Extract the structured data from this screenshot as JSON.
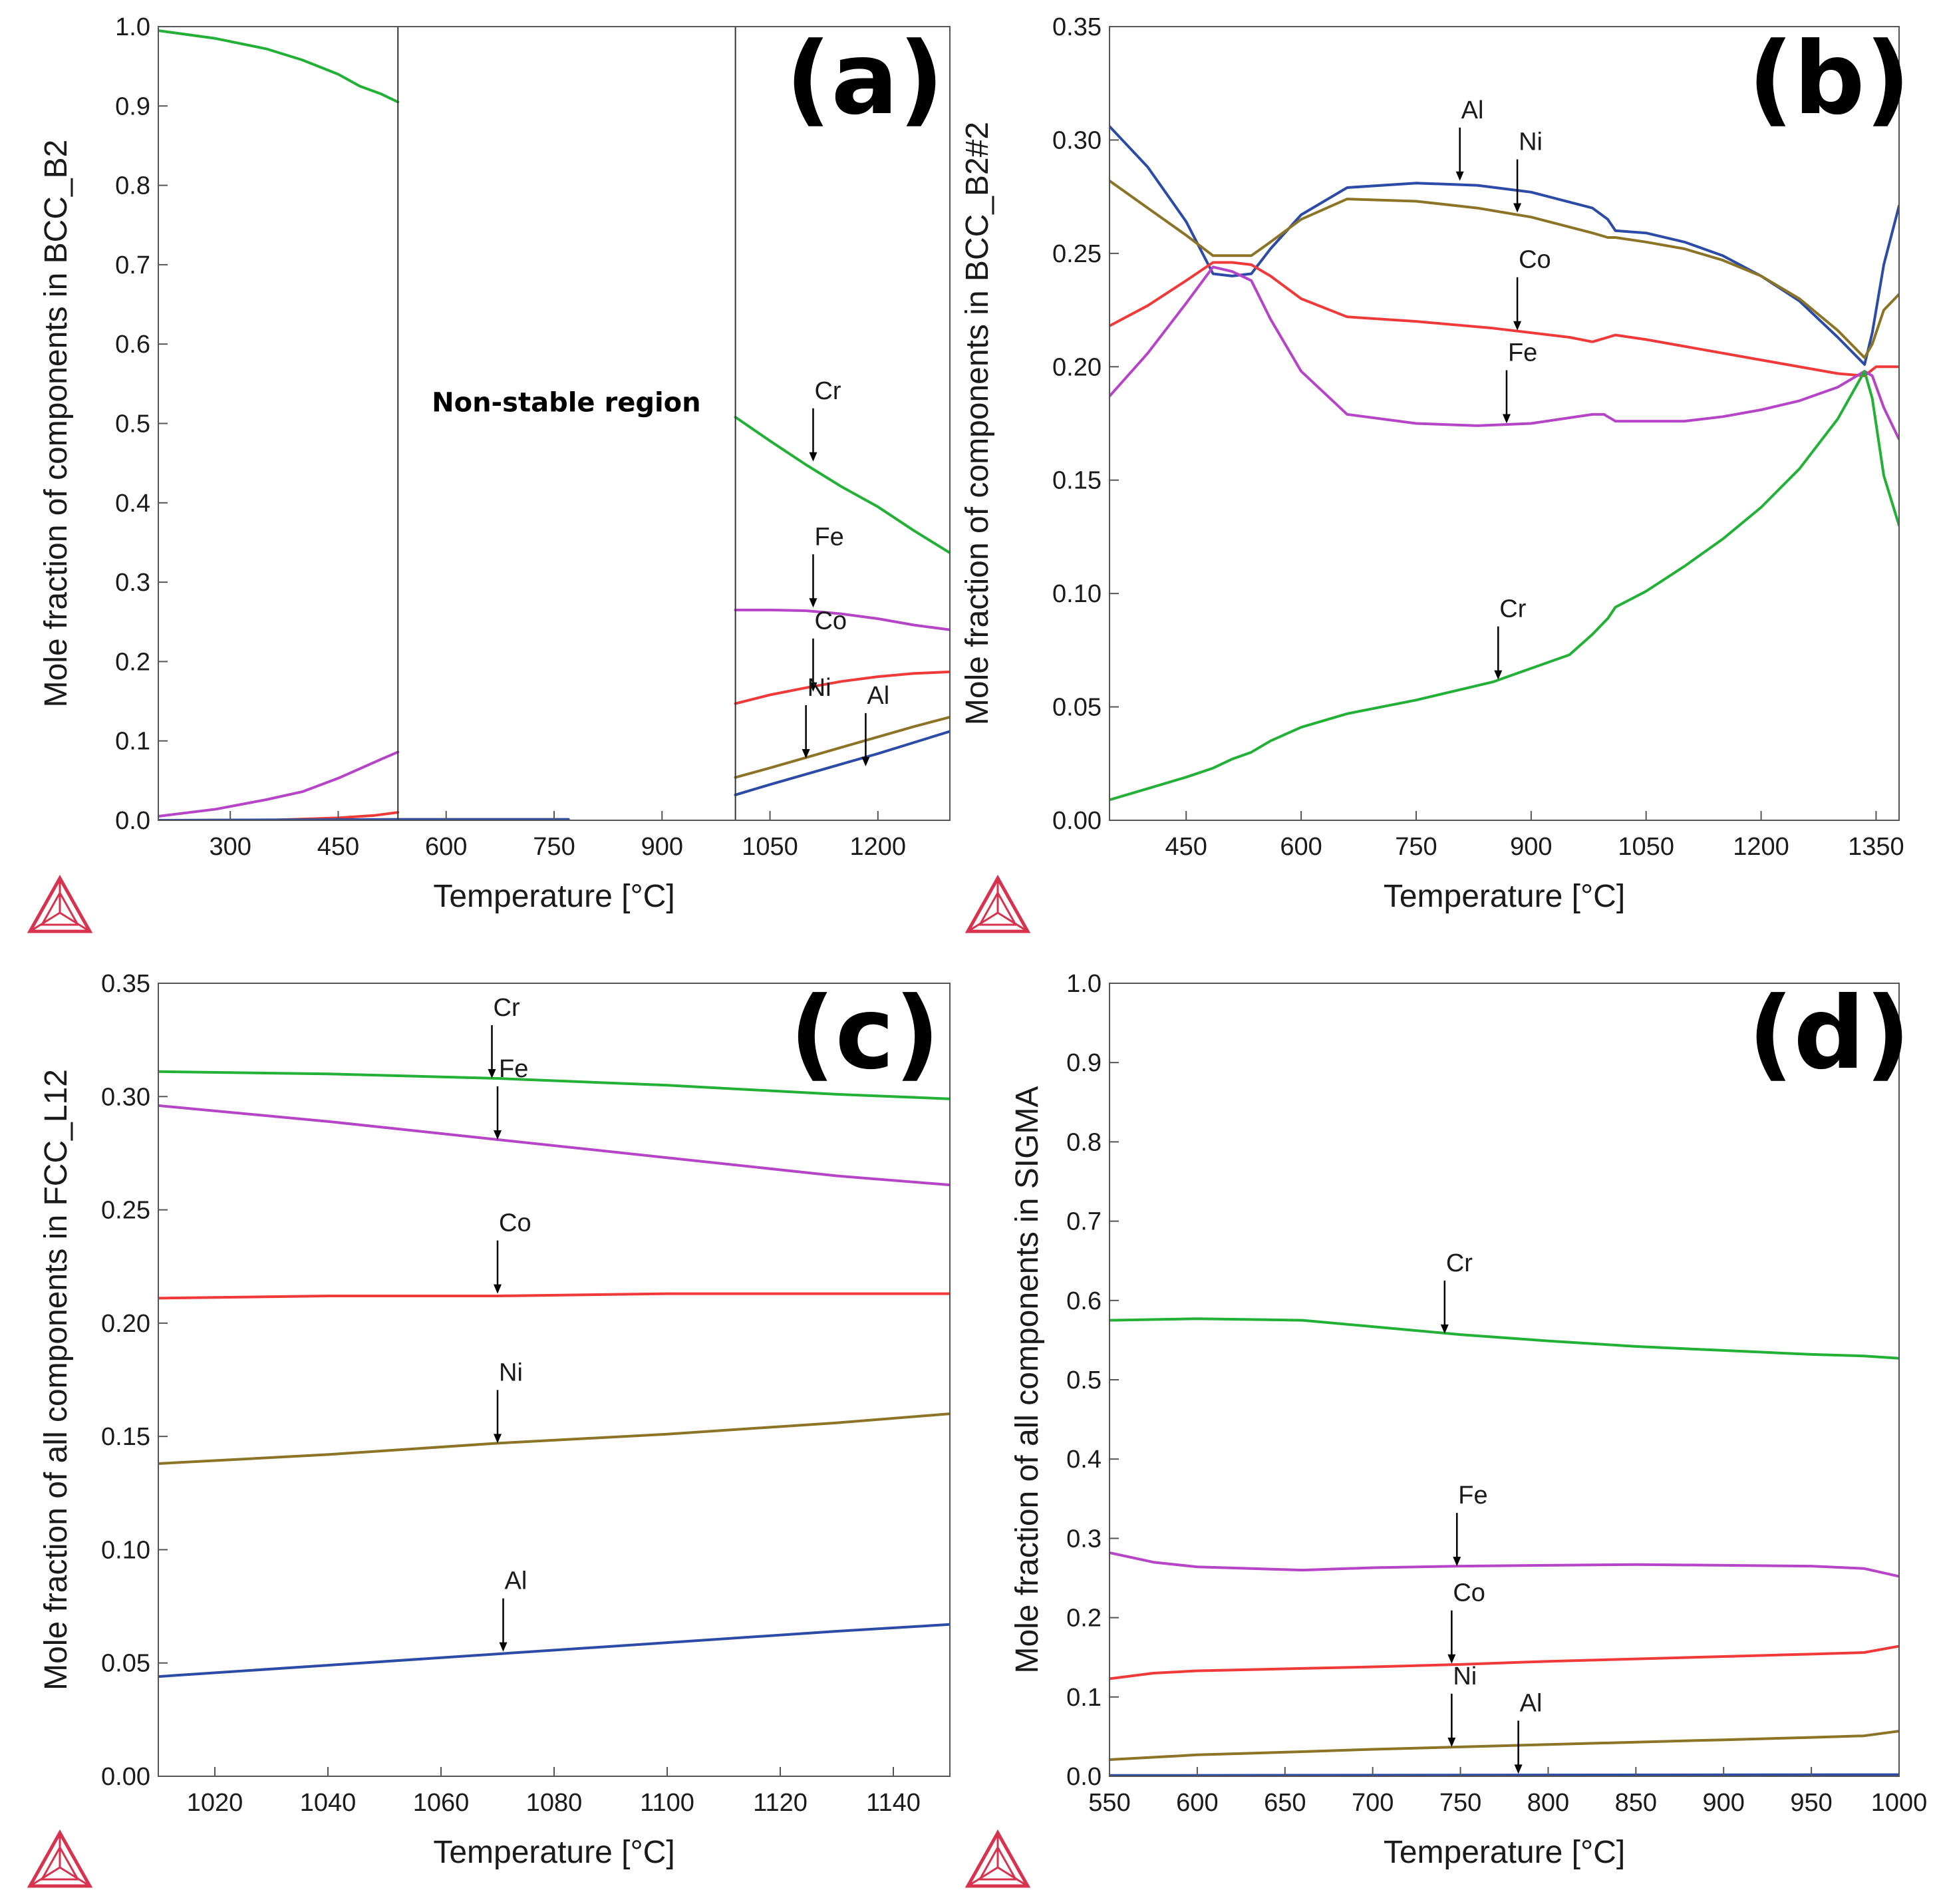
{
  "chart_data": [
    {
      "type": "line",
      "panel": "(a)",
      "xlabel": "Temperature [°C]",
      "ylabel": "Mole fraction of components in BCC_B2",
      "xlim": [
        200,
        1300
      ],
      "ylim": [
        0,
        1.0
      ],
      "xticks": [
        300,
        450,
        600,
        750,
        900,
        1050,
        1200
      ],
      "yticks": [
        0.0,
        0.1,
        0.2,
        0.3,
        0.4,
        0.5,
        0.6,
        0.7,
        0.8,
        0.9,
        1.0
      ],
      "ytick_labels": [
        "0.0",
        "0.1",
        "0.2",
        "0.3",
        "0.4",
        "0.5",
        "0.6",
        "0.7",
        "0.8",
        "0.9",
        "1.0"
      ],
      "vlines": [
        533,
        1002
      ],
      "region_label": {
        "text": "Non-stable region",
        "x": 767,
        "y": 0.515
      },
      "series": [
        {
          "name": "Cr",
          "color": "#22b036",
          "x": [
            200,
            280,
            350,
            400,
            450,
            480,
            510,
            533
          ],
          "y": [
            0.995,
            0.985,
            0.972,
            0.958,
            0.94,
            0.925,
            0.915,
            0.905
          ]
        },
        {
          "name": "Fe",
          "color": "#b545c6",
          "x": [
            200,
            280,
            350,
            400,
            450,
            480,
            510,
            533
          ],
          "y": [
            0.005,
            0.014,
            0.026,
            0.036,
            0.053,
            0.065,
            0.077,
            0.086
          ]
        },
        {
          "name": "Co",
          "color": "#f03a3a",
          "x": [
            200,
            350,
            450,
            500,
            533
          ],
          "y": [
            0.0,
            0.0,
            0.003,
            0.006,
            0.01
          ]
        },
        {
          "name": "Ni",
          "color": "#8b7426",
          "x": [
            200,
            533,
            770
          ],
          "y": [
            0.0,
            0.001,
            0.001
          ]
        },
        {
          "name": "Al",
          "color": "#2b4ba6",
          "x": [
            200,
            533,
            770
          ],
          "y": [
            0.0,
            0.001,
            0.001
          ]
        },
        {
          "name": "Cr",
          "color": "#22b036",
          "x": [
            1002,
            1050,
            1100,
            1150,
            1200,
            1250,
            1300
          ],
          "y": [
            0.508,
            0.478,
            0.448,
            0.42,
            0.395,
            0.365,
            0.337
          ]
        },
        {
          "name": "Fe",
          "color": "#b545c6",
          "x": [
            1002,
            1050,
            1100,
            1150,
            1200,
            1250,
            1300
          ],
          "y": [
            0.265,
            0.265,
            0.264,
            0.26,
            0.254,
            0.246,
            0.24
          ]
        },
        {
          "name": "Co",
          "color": "#f03a3a",
          "x": [
            1002,
            1050,
            1100,
            1150,
            1200,
            1250,
            1300
          ],
          "y": [
            0.147,
            0.158,
            0.167,
            0.175,
            0.181,
            0.185,
            0.187
          ]
        },
        {
          "name": "Ni",
          "color": "#8b7426",
          "x": [
            1002,
            1050,
            1100,
            1150,
            1200,
            1250,
            1300
          ],
          "y": [
            0.054,
            0.066,
            0.079,
            0.092,
            0.105,
            0.118,
            0.13
          ]
        },
        {
          "name": "Al",
          "color": "#2b4ba6",
          "x": [
            1002,
            1050,
            1100,
            1150,
            1200,
            1250,
            1300
          ],
          "y": [
            0.032,
            0.045,
            0.058,
            0.071,
            0.084,
            0.098,
            0.112
          ]
        }
      ],
      "annotations": [
        {
          "text": "Cr",
          "x": 1110,
          "y": 0.452
        },
        {
          "text": "Fe",
          "x": 1110,
          "y": 0.268
        },
        {
          "text": "Co",
          "x": 1110,
          "y": 0.162
        },
        {
          "text": "Ni",
          "x": 1100,
          "y": 0.078
        },
        {
          "text": "Al",
          "x": 1183,
          "y": 0.068
        }
      ]
    },
    {
      "type": "line",
      "panel": "(b)",
      "xlabel": "Temperature [°C]",
      "ylabel": "Mole fraction of components in BCC_B2#2",
      "xlim": [
        350,
        1380
      ],
      "ylim": [
        0,
        0.35
      ],
      "xticks": [
        450,
        600,
        750,
        900,
        1050,
        1200,
        1350
      ],
      "yticks": [
        0.0,
        0.05,
        0.1,
        0.15,
        0.2,
        0.25,
        0.3,
        0.35
      ],
      "ytick_labels": [
        "0.00",
        "0.05",
        "0.10",
        "0.15",
        "0.20",
        "0.25",
        "0.30",
        "0.35"
      ],
      "series": [
        {
          "name": "Al",
          "color": "#2b4ba6",
          "x": [
            350,
            400,
            450,
            485,
            510,
            535,
            560,
            600,
            660,
            750,
            830,
            900,
            980,
            1000,
            1010,
            1050,
            1100,
            1150,
            1200,
            1250,
            1300,
            1335,
            1345,
            1360,
            1380
          ],
          "y": [
            0.306,
            0.288,
            0.264,
            0.241,
            0.24,
            0.241,
            0.252,
            0.267,
            0.279,
            0.281,
            0.28,
            0.277,
            0.27,
            0.265,
            0.26,
            0.259,
            0.255,
            0.249,
            0.24,
            0.229,
            0.213,
            0.201,
            0.215,
            0.245,
            0.271
          ]
        },
        {
          "name": "Ni",
          "color": "#8b7426",
          "x": [
            350,
            400,
            450,
            485,
            510,
            535,
            560,
            600,
            660,
            750,
            830,
            900,
            980,
            1000,
            1010,
            1050,
            1100,
            1150,
            1200,
            1250,
            1300,
            1335,
            1345,
            1360,
            1380
          ],
          "y": [
            0.282,
            0.27,
            0.258,
            0.249,
            0.249,
            0.249,
            0.255,
            0.265,
            0.274,
            0.273,
            0.27,
            0.266,
            0.259,
            0.257,
            0.257,
            0.255,
            0.252,
            0.247,
            0.24,
            0.23,
            0.216,
            0.204,
            0.21,
            0.225,
            0.232
          ]
        },
        {
          "name": "Co",
          "color": "#f03a3a",
          "x": [
            350,
            400,
            450,
            485,
            510,
            535,
            560,
            600,
            660,
            750,
            850,
            950,
            980,
            1000,
            1010,
            1050,
            1100,
            1200,
            1300,
            1335,
            1350,
            1370,
            1380
          ],
          "y": [
            0.218,
            0.227,
            0.238,
            0.246,
            0.246,
            0.245,
            0.24,
            0.23,
            0.222,
            0.22,
            0.217,
            0.213,
            0.211,
            0.213,
            0.214,
            0.212,
            0.209,
            0.203,
            0.197,
            0.196,
            0.2,
            0.2,
            0.2
          ]
        },
        {
          "name": "Fe",
          "color": "#b545c6",
          "x": [
            350,
            400,
            450,
            485,
            510,
            535,
            560,
            600,
            660,
            750,
            830,
            900,
            980,
            995,
            1000,
            1010,
            1050,
            1100,
            1150,
            1200,
            1250,
            1300,
            1335,
            1345,
            1360,
            1380
          ],
          "y": [
            0.187,
            0.206,
            0.228,
            0.244,
            0.242,
            0.238,
            0.221,
            0.198,
            0.179,
            0.175,
            0.174,
            0.175,
            0.179,
            0.179,
            0.178,
            0.176,
            0.176,
            0.176,
            0.178,
            0.181,
            0.185,
            0.191,
            0.198,
            0.196,
            0.182,
            0.168
          ]
        },
        {
          "name": "Cr",
          "color": "#22b036",
          "x": [
            350,
            400,
            450,
            485,
            510,
            535,
            560,
            600,
            660,
            750,
            850,
            950,
            980,
            1000,
            1010,
            1050,
            1100,
            1150,
            1200,
            1250,
            1300,
            1335,
            1345,
            1360,
            1380
          ],
          "y": [
            0.009,
            0.014,
            0.019,
            0.023,
            0.027,
            0.03,
            0.035,
            0.041,
            0.047,
            0.053,
            0.061,
            0.073,
            0.082,
            0.089,
            0.094,
            0.101,
            0.112,
            0.124,
            0.138,
            0.155,
            0.177,
            0.198,
            0.186,
            0.152,
            0.13
          ]
        }
      ],
      "annotations": [
        {
          "text": "Al",
          "x": 807,
          "y": 0.282
        },
        {
          "text": "Ni",
          "x": 882,
          "y": 0.268
        },
        {
          "text": "Co",
          "x": 882,
          "y": 0.216
        },
        {
          "text": "Fe",
          "x": 868,
          "y": 0.175
        },
        {
          "text": "Cr",
          "x": 857,
          "y": 0.062
        }
      ]
    },
    {
      "type": "line",
      "panel": "(c)",
      "xlabel": "Temperature [°C]",
      "ylabel": "Mole fraction of all components in FCC_L12",
      "xlim": [
        1010,
        1150
      ],
      "ylim": [
        0,
        0.35
      ],
      "xticks": [
        1020,
        1040,
        1060,
        1080,
        1100,
        1120,
        1140
      ],
      "yticks": [
        0.0,
        0.05,
        0.1,
        0.15,
        0.2,
        0.25,
        0.3,
        0.35
      ],
      "ytick_labels": [
        "0.00",
        "0.05",
        "0.10",
        "0.15",
        "0.20",
        "0.25",
        "0.30",
        "0.35"
      ],
      "series": [
        {
          "name": "Cr",
          "color": "#22b036",
          "x": [
            1010,
            1040,
            1070,
            1100,
            1130,
            1150
          ],
          "y": [
            0.311,
            0.31,
            0.308,
            0.305,
            0.301,
            0.299
          ]
        },
        {
          "name": "Fe",
          "color": "#b545c6",
          "x": [
            1010,
            1040,
            1070,
            1100,
            1130,
            1150
          ],
          "y": [
            0.296,
            0.289,
            0.281,
            0.273,
            0.265,
            0.261
          ]
        },
        {
          "name": "Co",
          "color": "#f03a3a",
          "x": [
            1010,
            1040,
            1070,
            1100,
            1130,
            1150
          ],
          "y": [
            0.211,
            0.212,
            0.212,
            0.213,
            0.213,
            0.213
          ]
        },
        {
          "name": "Ni",
          "color": "#8b7426",
          "x": [
            1010,
            1040,
            1070,
            1100,
            1130,
            1150
          ],
          "y": [
            0.138,
            0.142,
            0.147,
            0.151,
            0.156,
            0.16
          ]
        },
        {
          "name": "Al",
          "color": "#2b4ba6",
          "x": [
            1010,
            1040,
            1070,
            1100,
            1130,
            1150
          ],
          "y": [
            0.044,
            0.049,
            0.054,
            0.059,
            0.064,
            0.067
          ]
        }
      ],
      "annotations": [
        {
          "text": "Cr",
          "x": 1069,
          "y": 0.308
        },
        {
          "text": "Fe",
          "x": 1070,
          "y": 0.281
        },
        {
          "text": "Co",
          "x": 1070,
          "y": 0.213
        },
        {
          "text": "Ni",
          "x": 1070,
          "y": 0.147
        },
        {
          "text": "Al",
          "x": 1071,
          "y": 0.055
        }
      ]
    },
    {
      "type": "line",
      "panel": "(d)",
      "xlabel": "Temperature [°C]",
      "ylabel": "Mole fraction of all components in SIGMA",
      "xlim": [
        550,
        1000
      ],
      "ylim": [
        0,
        1.0
      ],
      "xticks": [
        550,
        600,
        650,
        700,
        750,
        800,
        850,
        900,
        950,
        1000
      ],
      "yticks": [
        0.0,
        0.1,
        0.2,
        0.3,
        0.4,
        0.5,
        0.6,
        0.7,
        0.8,
        0.9,
        1.0
      ],
      "ytick_labels": [
        "0.0",
        "0.1",
        "0.2",
        "0.3",
        "0.4",
        "0.5",
        "0.6",
        "0.7",
        "0.8",
        "0.9",
        "1.0"
      ],
      "series": [
        {
          "name": "Cr",
          "color": "#22b036",
          "x": [
            550,
            600,
            660,
            700,
            750,
            800,
            850,
            900,
            950,
            980,
            1000
          ],
          "y": [
            0.575,
            0.577,
            0.575,
            0.567,
            0.557,
            0.549,
            0.542,
            0.537,
            0.532,
            0.53,
            0.527
          ]
        },
        {
          "name": "Fe",
          "color": "#b545c6",
          "x": [
            550,
            575,
            600,
            660,
            700,
            750,
            800,
            850,
            900,
            950,
            980,
            1000
          ],
          "y": [
            0.282,
            0.27,
            0.264,
            0.26,
            0.263,
            0.265,
            0.266,
            0.267,
            0.266,
            0.265,
            0.262,
            0.252
          ]
        },
        {
          "name": "Co",
          "color": "#f03a3a",
          "x": [
            550,
            575,
            600,
            660,
            700,
            750,
            800,
            850,
            900,
            950,
            980,
            1000
          ],
          "y": [
            0.123,
            0.13,
            0.133,
            0.136,
            0.138,
            0.141,
            0.145,
            0.148,
            0.151,
            0.154,
            0.156,
            0.164
          ]
        },
        {
          "name": "Ni",
          "color": "#8b7426",
          "x": [
            550,
            600,
            660,
            700,
            750,
            800,
            850,
            900,
            950,
            980,
            1000
          ],
          "y": [
            0.021,
            0.027,
            0.031,
            0.034,
            0.037,
            0.04,
            0.043,
            0.046,
            0.049,
            0.051,
            0.057
          ]
        },
        {
          "name": "Al",
          "color": "#2b4ba6",
          "x": [
            550,
            1000
          ],
          "y": [
            0.001,
            0.002
          ]
        }
      ],
      "annotations": [
        {
          "text": "Cr",
          "x": 741,
          "y": 0.558
        },
        {
          "text": "Fe",
          "x": 748,
          "y": 0.265
        },
        {
          "text": "Co",
          "x": 745,
          "y": 0.142
        },
        {
          "text": "Ni",
          "x": 745,
          "y": 0.037
        },
        {
          "text": "Al",
          "x": 783,
          "y": 0.003
        }
      ]
    }
  ],
  "icon_names": [
    "thermo-calc-logo-icon"
  ]
}
